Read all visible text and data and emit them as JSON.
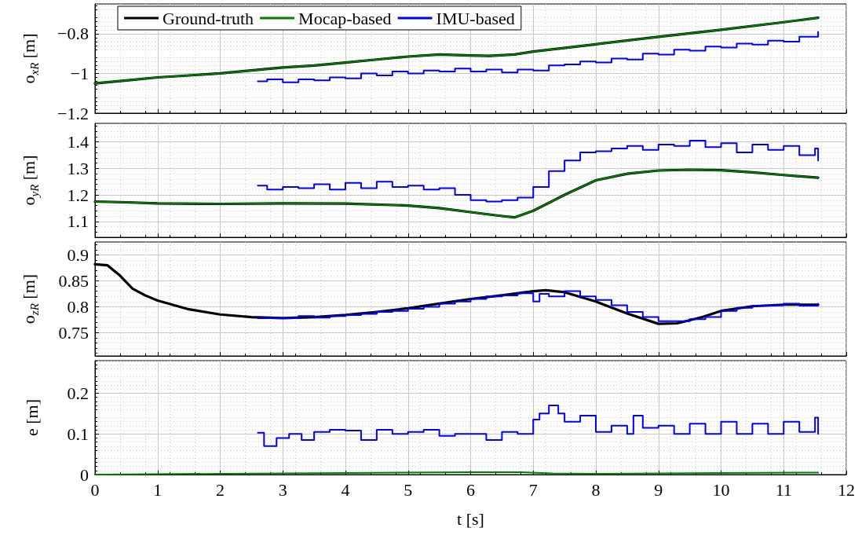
{
  "chart_data": [
    {
      "type": "line",
      "ylabel": "o$_{xR}$ [m]",
      "xlim": [
        0,
        12
      ],
      "xticks": [
        0,
        1,
        2,
        3,
        4,
        5,
        6,
        7,
        8,
        9,
        10,
        11,
        12
      ],
      "ylim": [
        -1.2,
        -0.65
      ],
      "yticks": [
        {
          "value": -1.2,
          "label": "−1.2"
        },
        {
          "value": -1,
          "label": "−1"
        },
        {
          "value": -0.8,
          "label": "−0.8"
        }
      ],
      "tick_labels": "y",
      "grid": true,
      "legend": "top left",
      "marker": "none",
      "line_style": "solid",
      "series": [
        {
          "name": "Ground-truth",
          "color": "#000000",
          "x": [
            0,
            0.5,
            1,
            1.5,
            2,
            2.5,
            3,
            3.5,
            4,
            4.5,
            5,
            5.5,
            6,
            6.3,
            6.7,
            7,
            8,
            9,
            10,
            11,
            11.55
          ],
          "values": [
            -1.05,
            -1.035,
            -1.02,
            -1.01,
            -1.0,
            -0.985,
            -0.97,
            -0.96,
            -0.945,
            -0.93,
            -0.915,
            -0.905,
            -0.91,
            -0.912,
            -0.905,
            -0.89,
            -0.853,
            -0.816,
            -0.78,
            -0.742,
            -0.72
          ]
        },
        {
          "name": "Mocap-based",
          "color": "#008000",
          "x": [
            0,
            0.5,
            1,
            1.5,
            2,
            2.5,
            3,
            3.5,
            4,
            4.5,
            5,
            5.5,
            6,
            6.3,
            6.7,
            7,
            8,
            9,
            10,
            11,
            11.55
          ],
          "values": [
            -1.05,
            -1.035,
            -1.02,
            -1.01,
            -1.0,
            -0.985,
            -0.97,
            -0.96,
            -0.945,
            -0.93,
            -0.915,
            -0.905,
            -0.91,
            -0.912,
            -0.905,
            -0.89,
            -0.853,
            -0.816,
            -0.78,
            -0.742,
            -0.72
          ]
        },
        {
          "name": "IMU-based",
          "color": "#0000ff",
          "type": "step",
          "x": [
            2.6,
            2.75,
            3,
            3.25,
            3.5,
            3.75,
            4,
            4.25,
            4.5,
            4.75,
            5,
            5.25,
            5.5,
            5.75,
            6,
            6.25,
            6.5,
            6.75,
            7,
            7.25,
            7.5,
            7.75,
            8,
            8.25,
            8.5,
            8.75,
            9,
            9.25,
            9.5,
            9.75,
            10,
            10.25,
            10.5,
            10.75,
            11,
            11.25,
            11.55
          ],
          "values": [
            -1.04,
            -1.03,
            -1.045,
            -1.03,
            -1.035,
            -1.02,
            -1.025,
            -1.0,
            -1.01,
            -0.99,
            -1.0,
            -0.985,
            -0.99,
            -0.975,
            -0.99,
            -0.98,
            -0.995,
            -0.98,
            -0.985,
            -0.96,
            -0.955,
            -0.94,
            -0.945,
            -0.925,
            -0.93,
            -0.9,
            -0.905,
            -0.88,
            -0.885,
            -0.865,
            -0.87,
            -0.85,
            -0.855,
            -0.835,
            -0.84,
            -0.815,
            -0.79
          ]
        }
      ]
    },
    {
      "type": "line",
      "ylabel": "o$_{yR}$ [m]",
      "xlim": [
        0,
        12
      ],
      "xticks": [
        0,
        1,
        2,
        3,
        4,
        5,
        6,
        7,
        8,
        9,
        10,
        11,
        12
      ],
      "ylim": [
        1.04,
        1.47
      ],
      "yticks": [
        1.1,
        1.2,
        1.3,
        1.4
      ],
      "tick_labels": "y",
      "grid": true,
      "marker": "none",
      "line_style": "solid",
      "series": [
        {
          "color": "#000000",
          "x": [
            0,
            0.5,
            1,
            2,
            3,
            4,
            5,
            5.5,
            6,
            6.5,
            6.7,
            7,
            7.5,
            8,
            8.5,
            9,
            9.5,
            10,
            10.5,
            11,
            11.55
          ],
          "values": [
            1.175,
            1.172,
            1.168,
            1.166,
            1.168,
            1.167,
            1.16,
            1.15,
            1.135,
            1.12,
            1.115,
            1.14,
            1.2,
            1.255,
            1.28,
            1.292,
            1.295,
            1.293,
            1.285,
            1.275,
            1.265
          ]
        },
        {
          "color": "#008000",
          "x": [
            0,
            0.5,
            1,
            2,
            3,
            4,
            5,
            5.5,
            6,
            6.5,
            6.7,
            7,
            7.5,
            8,
            8.5,
            9,
            9.5,
            10,
            10.5,
            11,
            11.55
          ],
          "values": [
            1.175,
            1.172,
            1.168,
            1.166,
            1.168,
            1.167,
            1.16,
            1.15,
            1.135,
            1.12,
            1.115,
            1.14,
            1.2,
            1.255,
            1.28,
            1.292,
            1.295,
            1.293,
            1.285,
            1.275,
            1.265
          ]
        },
        {
          "color": "#0000ff",
          "type": "step",
          "x": [
            2.6,
            2.75,
            3,
            3.25,
            3.5,
            3.75,
            4,
            4.25,
            4.5,
            4.75,
            5,
            5.25,
            5.5,
            5.75,
            6,
            6.25,
            6.5,
            6.75,
            7,
            7.25,
            7.5,
            7.75,
            8,
            8.25,
            8.5,
            8.75,
            9,
            9.25,
            9.5,
            9.75,
            10,
            10.25,
            10.5,
            10.75,
            11,
            11.25,
            11.5,
            11.55
          ],
          "values": [
            1.235,
            1.22,
            1.23,
            1.225,
            1.24,
            1.22,
            1.245,
            1.225,
            1.25,
            1.23,
            1.235,
            1.22,
            1.225,
            1.2,
            1.18,
            1.175,
            1.18,
            1.19,
            1.23,
            1.29,
            1.33,
            1.36,
            1.365,
            1.375,
            1.385,
            1.37,
            1.39,
            1.385,
            1.405,
            1.38,
            1.395,
            1.36,
            1.39,
            1.37,
            1.385,
            1.35,
            1.375,
            1.33
          ]
        }
      ]
    },
    {
      "type": "line",
      "ylabel": "o$_{zR}$ [m]",
      "xlim": [
        0,
        12
      ],
      "xticks": [
        0,
        1,
        2,
        3,
        4,
        5,
        6,
        7,
        8,
        9,
        10,
        11,
        12
      ],
      "ylim": [
        0.705,
        0.925
      ],
      "yticks": [
        0.75,
        0.8,
        0.85,
        0.9
      ],
      "tick_labels": "y",
      "grid": true,
      "marker": "none",
      "line_style": "solid",
      "series": [
        {
          "color": "#000000",
          "x": [
            0,
            0.2,
            0.4,
            0.6,
            0.8,
            1,
            1.5,
            2,
            2.5,
            3,
            3.5,
            4,
            4.5,
            5,
            5.5,
            6,
            6.5,
            7,
            7.2,
            7.5,
            8,
            8.5,
            9,
            9.3,
            9.7,
            10,
            10.5,
            11,
            11.55
          ],
          "values": [
            0.882,
            0.88,
            0.86,
            0.835,
            0.822,
            0.812,
            0.795,
            0.785,
            0.78,
            0.778,
            0.78,
            0.784,
            0.79,
            0.797,
            0.806,
            0.815,
            0.822,
            0.83,
            0.832,
            0.828,
            0.81,
            0.787,
            0.767,
            0.768,
            0.78,
            0.792,
            0.801,
            0.804,
            0.804
          ]
        },
        {
          "color": "#0000ff",
          "type": "step",
          "x": [
            2.6,
            3,
            3.25,
            3.5,
            3.75,
            4,
            4.25,
            4.5,
            4.75,
            5,
            5.25,
            5.5,
            5.75,
            6,
            6.25,
            6.5,
            6.75,
            7,
            7.1,
            7.25,
            7.5,
            7.75,
            8,
            8.25,
            8.5,
            8.75,
            9,
            9.25,
            9.5,
            9.75,
            10,
            10.25,
            10.5,
            10.75,
            11,
            11.25,
            11.55
          ],
          "values": [
            0.778,
            0.778,
            0.782,
            0.779,
            0.782,
            0.784,
            0.786,
            0.79,
            0.792,
            0.796,
            0.8,
            0.806,
            0.81,
            0.815,
            0.82,
            0.822,
            0.826,
            0.81,
            0.825,
            0.82,
            0.83,
            0.82,
            0.813,
            0.803,
            0.79,
            0.78,
            0.772,
            0.772,
            0.776,
            0.78,
            0.792,
            0.798,
            0.802,
            0.803,
            0.806,
            0.802,
            0.806
          ]
        }
      ]
    },
    {
      "type": "line",
      "ylabel": "e [m]",
      "xlabel": "t [s]",
      "xlim": [
        0,
        12
      ],
      "xticks": [
        0,
        1,
        2,
        3,
        4,
        5,
        6,
        7,
        8,
        9,
        10,
        11,
        12
      ],
      "ylim": [
        0,
        0.28
      ],
      "yticks": [
        0,
        0.1,
        0.2
      ],
      "grid": true,
      "marker": "none",
      "line_style": "solid",
      "series": [
        {
          "color": "#008000",
          "x": [
            0,
            2,
            4,
            6,
            6.8,
            7.3,
            8,
            10,
            11.55
          ],
          "values": [
            0,
            0.002,
            0.004,
            0.006,
            0.006,
            0.003,
            0.002,
            0.004,
            0.005
          ]
        },
        {
          "color": "#0000ff",
          "type": "step",
          "x": [
            2.6,
            2.7,
            2.9,
            3.1,
            3.3,
            3.5,
            3.75,
            4,
            4.25,
            4.5,
            4.75,
            5,
            5.25,
            5.5,
            5.75,
            6,
            6.25,
            6.5,
            6.75,
            7,
            7.1,
            7.25,
            7.4,
            7.5,
            7.75,
            8,
            8.25,
            8.5,
            8.6,
            8.75,
            9,
            9.25,
            9.5,
            9.75,
            10,
            10.25,
            10.5,
            10.75,
            11,
            11.25,
            11.5,
            11.55
          ],
          "values": [
            0.103,
            0.07,
            0.09,
            0.1,
            0.085,
            0.105,
            0.11,
            0.108,
            0.085,
            0.11,
            0.1,
            0.105,
            0.11,
            0.095,
            0.1,
            0.1,
            0.085,
            0.105,
            0.1,
            0.135,
            0.15,
            0.17,
            0.15,
            0.13,
            0.145,
            0.105,
            0.12,
            0.1,
            0.145,
            0.115,
            0.12,
            0.1,
            0.125,
            0.1,
            0.13,
            0.1,
            0.125,
            0.1,
            0.13,
            0.105,
            0.14,
            0.1
          ]
        }
      ]
    }
  ]
}
